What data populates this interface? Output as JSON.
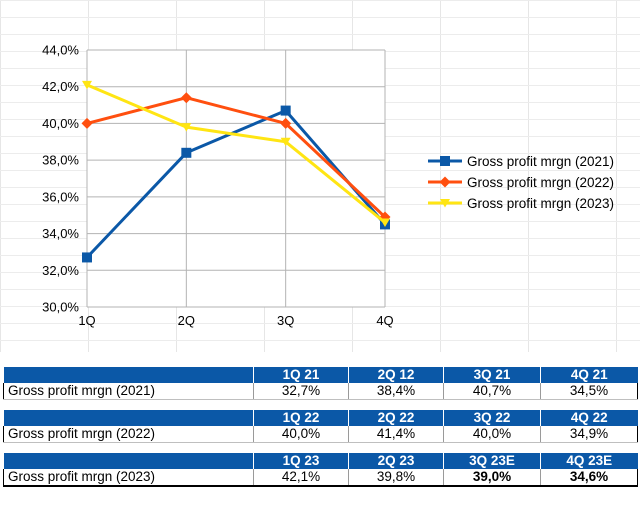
{
  "chart_data": {
    "type": "line",
    "categories": [
      "1Q",
      "2Q",
      "3Q",
      "4Q"
    ],
    "ylim": [
      30.0,
      44.0
    ],
    "yticks": [
      "30,0%",
      "32,0%",
      "34,0%",
      "36,0%",
      "38,0%",
      "40,0%",
      "42,0%",
      "44,0%"
    ],
    "yticks_values": [
      30,
      32,
      34,
      36,
      38,
      40,
      42,
      44
    ],
    "grid": true,
    "legend_position": "right",
    "series": [
      {
        "name": "Gross profit mrgn (2021)",
        "values": [
          32.7,
          38.4,
          40.7,
          34.5
        ],
        "color": "#0b58a7",
        "marker": "square"
      },
      {
        "name": "Gross profit mrgn (2022)",
        "values": [
          40.0,
          41.4,
          40.0,
          34.9
        ],
        "color": "#ff4f0f",
        "marker": "diamond"
      },
      {
        "name": "Gross profit mrgn (2023)",
        "values": [
          42.1,
          39.8,
          39.0,
          34.6
        ],
        "color": "#ffe513",
        "marker": "triangle-down"
      }
    ]
  },
  "table": {
    "blocks": [
      {
        "headers": [
          "1Q 21",
          "2Q 12",
          "3Q 21",
          "4Q 21"
        ],
        "label": "Gross profit mrgn (2021)",
        "values": [
          "32,7%",
          "38,4%",
          "40,7%",
          "34,5%"
        ]
      },
      {
        "headers": [
          "1Q 22",
          "2Q 22",
          "3Q 22",
          "4Q 22"
        ],
        "label": "Gross profit mrgn (2022)",
        "values": [
          "40,0%",
          "41,4%",
          "40,0%",
          "34,9%"
        ]
      },
      {
        "headers": [
          "1Q 23",
          "2Q 23",
          "3Q 23E",
          "4Q 23E"
        ],
        "label": "Gross profit mrgn (2023)",
        "values": [
          "42,1%",
          "39,8%",
          "39,0%",
          "34,6%"
        ]
      }
    ]
  },
  "colors": {
    "header_bg": "#0b58a7",
    "header_text": "#ffffff"
  }
}
